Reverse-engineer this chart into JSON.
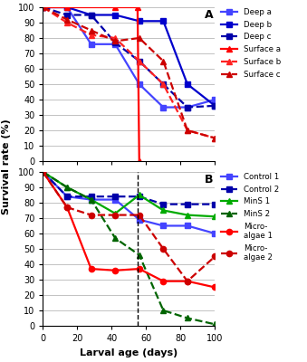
{
  "panel_A": {
    "Deep_a": {
      "x": [
        0,
        14,
        28,
        42,
        56,
        70,
        84,
        100
      ],
      "y": [
        100,
        100,
        76,
        76,
        50,
        35,
        35,
        40
      ],
      "color": "#4444FF",
      "ls": "solid",
      "mk": "s"
    },
    "Deep_b": {
      "x": [
        0,
        14,
        28,
        42,
        56,
        70,
        84,
        100
      ],
      "y": [
        100,
        100,
        95,
        95,
        91,
        91,
        50,
        36
      ],
      "color": "#0000CC",
      "ls": "solid",
      "mk": "s"
    },
    "Deep_c": {
      "x": [
        0,
        14,
        28,
        42,
        56,
        70,
        84,
        100
      ],
      "y": [
        100,
        95,
        95,
        77,
        65,
        50,
        35,
        36
      ],
      "color": "#0000AA",
      "ls": "dashed",
      "mk": "s"
    },
    "Surface_a": {
      "x": [
        0,
        14,
        42,
        55,
        56
      ],
      "y": [
        100,
        100,
        100,
        100,
        0
      ],
      "color": "#FF0000",
      "ls": "solid",
      "mk": "^"
    },
    "Surface_b": {
      "x": [
        0,
        14,
        28,
        42,
        56,
        70,
        84,
        100
      ],
      "y": [
        100,
        90,
        82,
        80,
        65,
        50,
        20,
        15
      ],
      "color": "#FF2222",
      "ls": "dashed",
      "mk": "^"
    },
    "Surface_c": {
      "x": [
        0,
        14,
        28,
        42,
        56,
        70,
        84,
        100
      ],
      "y": [
        100,
        92,
        85,
        78,
        80,
        65,
        20,
        15
      ],
      "color": "#CC0000",
      "ls": "dashed",
      "mk": "^"
    }
  },
  "panel_B": {
    "Control_1": {
      "x": [
        0,
        14,
        28,
        42,
        56,
        70,
        84,
        100
      ],
      "y": [
        100,
        84,
        82,
        82,
        69,
        65,
        65,
        60
      ],
      "color": "#4444FF",
      "ls": "solid",
      "mk": "s"
    },
    "Control_2": {
      "x": [
        0,
        14,
        28,
        42,
        56,
        70,
        84,
        100
      ],
      "y": [
        100,
        84,
        84,
        84,
        84,
        79,
        79,
        79
      ],
      "color": "#0000AA",
      "ls": "dashed",
      "mk": "s"
    },
    "MinS_1": {
      "x": [
        0,
        14,
        28,
        42,
        56,
        70,
        84,
        100
      ],
      "y": [
        100,
        90,
        82,
        73,
        85,
        75,
        72,
        71
      ],
      "color": "#00AA00",
      "ls": "solid",
      "mk": "^"
    },
    "MinS_2": {
      "x": [
        0,
        14,
        28,
        42,
        56,
        70,
        84,
        100
      ],
      "y": [
        100,
        90,
        82,
        57,
        46,
        10,
        5,
        1
      ],
      "color": "#006400",
      "ls": "dashed",
      "mk": "^"
    },
    "Micro_1": {
      "x": [
        0,
        14,
        28,
        42,
        56,
        70,
        84,
        100
      ],
      "y": [
        100,
        77,
        37,
        36,
        37,
        29,
        29,
        25
      ],
      "color": "#FF0000",
      "ls": "solid",
      "mk": "o"
    },
    "Micro_2": {
      "x": [
        0,
        14,
        28,
        42,
        56,
        70,
        84,
        100
      ],
      "y": [
        100,
        77,
        72,
        72,
        72,
        50,
        29,
        45
      ],
      "color": "#CC0000",
      "ls": "dashed",
      "mk": "o"
    }
  },
  "legend_A": [
    {
      "label": "Deep a",
      "color": "#4444FF",
      "ls": "solid",
      "mk": "s"
    },
    {
      "label": "Deep b",
      "color": "#0000CC",
      "ls": "solid",
      "mk": "s"
    },
    {
      "label": "Deep c",
      "color": "#0000AA",
      "ls": "dashed",
      "mk": "s"
    },
    {
      "label": "Surface a",
      "color": "#FF0000",
      "ls": "solid",
      "mk": "^"
    },
    {
      "label": "Surface b",
      "color": "#FF2222",
      "ls": "dashed",
      "mk": "^"
    },
    {
      "label": "Surface c",
      "color": "#CC0000",
      "ls": "dashed",
      "mk": "^"
    }
  ],
  "legend_B": [
    {
      "label": "Control 1",
      "color": "#4444FF",
      "ls": "solid",
      "mk": "s"
    },
    {
      "label": "Control 2",
      "color": "#0000AA",
      "ls": "dashed",
      "mk": "s"
    },
    {
      "label": "MinS 1",
      "color": "#00AA00",
      "ls": "solid",
      "mk": "^"
    },
    {
      "label": "MinS 2",
      "color": "#006400",
      "ls": "dashed",
      "mk": "^"
    },
    {
      "label": "Micro-\nalgae 1",
      "color": "#FF0000",
      "ls": "solid",
      "mk": "o"
    },
    {
      "label": "Micro-\nalgae 2",
      "color": "#CC0000",
      "ls": "dashed",
      "mk": "o"
    }
  ],
  "xlabel": "Larval age (days)",
  "ylabel": "Survival rate (%)",
  "xlim": [
    0,
    100
  ],
  "ylim": [
    0,
    100
  ],
  "bg_color": "#FFFFFF",
  "dashed_line_x": 55
}
